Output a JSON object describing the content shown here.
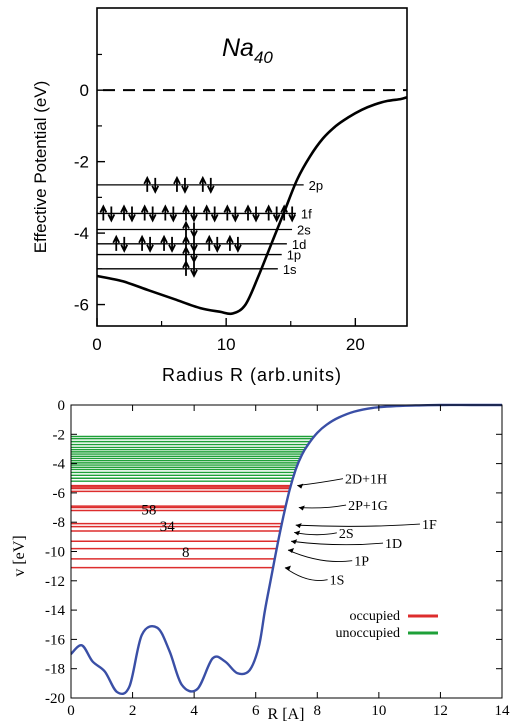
{
  "chart_data": [
    {
      "type": "line",
      "title": "Na",
      "title_sub": "40",
      "xlabel": "Radius  R (arb.units)",
      "ylabel": "Effective Potential (eV)",
      "xlim": [
        0,
        24
      ],
      "ylim": [
        -6.6,
        2.3
      ],
      "x_ticks": [
        0,
        10,
        20
      ],
      "y_ticks": [
        0,
        -2,
        -4,
        -6
      ],
      "grid": false,
      "series": [
        {
          "x": [
            0,
            2,
            4,
            6,
            8,
            9.5,
            10.5,
            11.5,
            12.5,
            13.5,
            14.5,
            15.5,
            16.5,
            17.5,
            18.5,
            19.5,
            20.5,
            21.5,
            22.5,
            23.5,
            24
          ],
          "y": [
            -5.2,
            -5.35,
            -5.6,
            -5.85,
            -6.1,
            -6.2,
            -6.25,
            -6.0,
            -5.2,
            -4.3,
            -3.4,
            -2.5,
            -1.85,
            -1.35,
            -1.0,
            -0.75,
            -0.55,
            -0.4,
            -0.3,
            -0.25,
            -0.2
          ]
        }
      ],
      "reference_line": {
        "y": 0,
        "style": "dashed"
      },
      "levels": [
        {
          "label": "1s",
          "energy": -5.0,
          "x_end": 14.0,
          "arrows": [
            {
              "x": 7.2,
              "n": 2
            }
          ]
        },
        {
          "label": "1p",
          "energy": -4.6,
          "x_end": 14.3,
          "arrows": [
            {
              "x": 7.2,
              "n": 2
            }
          ]
        },
        {
          "label": "1d",
          "energy": -4.3,
          "x_end": 14.7,
          "arrows": [
            {
              "x": 1.8,
              "n": 2
            },
            {
              "x": 3.8,
              "n": 2
            },
            {
              "x": 5.5,
              "n": 2
            },
            {
              "x": 7.2,
              "n": 2
            },
            {
              "x": 9.0,
              "n": 2
            },
            {
              "x": 10.6,
              "n": 2
            }
          ]
        },
        {
          "label": "2s",
          "energy": -3.9,
          "x_end": 15.1,
          "arrows": [
            {
              "x": 7.2,
              "n": 2
            }
          ]
        },
        {
          "label": "1f",
          "energy": -3.45,
          "x_end": 15.4,
          "arrows": [
            {
              "x": 0.8,
              "n": 2
            },
            {
              "x": 2.4,
              "n": 2
            },
            {
              "x": 4.0,
              "n": 2
            },
            {
              "x": 5.6,
              "n": 2
            },
            {
              "x": 7.2,
              "n": 2
            },
            {
              "x": 8.8,
              "n": 2
            },
            {
              "x": 10.4,
              "n": 2
            },
            {
              "x": 12.0,
              "n": 2
            },
            {
              "x": 13.6,
              "n": 2
            },
            {
              "x": 14.8,
              "n": 2
            }
          ]
        },
        {
          "label": "2p",
          "energy": -2.65,
          "x_end": 16.0,
          "arrows": [
            {
              "x": 4.2,
              "n": 2
            },
            {
              "x": 6.5,
              "n": 2
            },
            {
              "x": 8.5,
              "n": 2
            }
          ]
        }
      ]
    },
    {
      "type": "line",
      "title": "",
      "xlabel": "R [A]",
      "ylabel": "v [eV]",
      "xlim": [
        0,
        14
      ],
      "ylim": [
        -20,
        0
      ],
      "x_ticks": [
        0,
        2,
        4,
        6,
        8,
        10,
        12,
        14
      ],
      "y_ticks": [
        0,
        -2,
        -4,
        -6,
        -8,
        -10,
        -12,
        -14,
        -16,
        -18,
        -20
      ],
      "grid": false,
      "legend_position": "bottom-right",
      "series": [
        {
          "x": [
            0,
            0.35,
            0.7,
            1.1,
            1.5,
            1.9,
            2.3,
            2.8,
            3.2,
            3.6,
            4.1,
            4.6,
            5.0,
            5.4,
            5.8,
            6.1,
            6.3,
            6.5,
            6.7,
            6.9,
            7.1,
            7.3,
            7.5,
            7.7,
            8.0,
            8.3,
            8.7,
            9.2,
            9.8,
            10.5,
            11.3,
            12.0,
            13.0,
            14.0
          ],
          "y": [
            -17.0,
            -16.4,
            -17.5,
            -18.2,
            -19.6,
            -19.2,
            -15.7,
            -15.2,
            -16.8,
            -19.1,
            -19.4,
            -17.3,
            -17.5,
            -18.3,
            -18.1,
            -16.5,
            -14.0,
            -11.8,
            -9.6,
            -7.6,
            -5.8,
            -4.4,
            -3.4,
            -2.7,
            -1.9,
            -1.35,
            -0.85,
            -0.45,
            -0.2,
            -0.08,
            -0.03,
            0,
            0,
            0
          ]
        }
      ],
      "occupied_levels": [
        -11.1,
        -10.5,
        -9.8,
        -9.3,
        -8.6,
        -8.3,
        -8.1,
        -7.2,
        -7.0,
        -6.9,
        -5.9,
        -5.7,
        -5.6,
        -5.5
      ],
      "unoccupied_levels": [
        -5.2,
        -5.0,
        -4.8,
        -4.6,
        -4.4,
        -4.25,
        -4.1,
        -3.95,
        -3.8,
        -3.65,
        -3.5,
        -3.35,
        -3.2,
        -3.05,
        -2.9,
        -2.7,
        -2.5,
        -2.3,
        -2.15
      ],
      "shell_labels": [
        {
          "text": "58",
          "x": 7.4
        },
        {
          "text": "34",
          "x": 8.0
        },
        {
          "text": "8",
          "x": 8.6
        }
      ],
      "state_labels": [
        {
          "text": "2D+1H",
          "x": 8.9,
          "y": -5.3,
          "ax": 7.35,
          "ay": -5.5
        },
        {
          "text": "2P+1G",
          "x": 9.0,
          "y": -7.1,
          "ax": 7.4,
          "ay": -7.0
        },
        {
          "text": "1F",
          "x": 11.4,
          "y": -8.4,
          "ax": 7.3,
          "ay": -8.2
        },
        {
          "text": "2S",
          "x": 8.7,
          "y": -9.0,
          "ax": 7.25,
          "ay": -8.7
        },
        {
          "text": "1D",
          "x": 10.2,
          "y": -9.7,
          "ax": 7.15,
          "ay": -9.3
        },
        {
          "text": "1P",
          "x": 9.2,
          "y": -10.9,
          "ax": 7.05,
          "ay": -9.9
        },
        {
          "text": "1S",
          "x": 8.4,
          "y": -12.2,
          "ax": 6.95,
          "ay": -11.1
        }
      ],
      "legend": [
        {
          "label": "occupied",
          "color": "#dd2d2d"
        },
        {
          "label": "unoccupied",
          "color": "#1ea038"
        }
      ]
    }
  ],
  "colors": {
    "curve_top": "#000000",
    "curve_bottom": "#3a4fa6",
    "occupied": "#dd2d2d",
    "unoccupied": "#1ea038"
  }
}
